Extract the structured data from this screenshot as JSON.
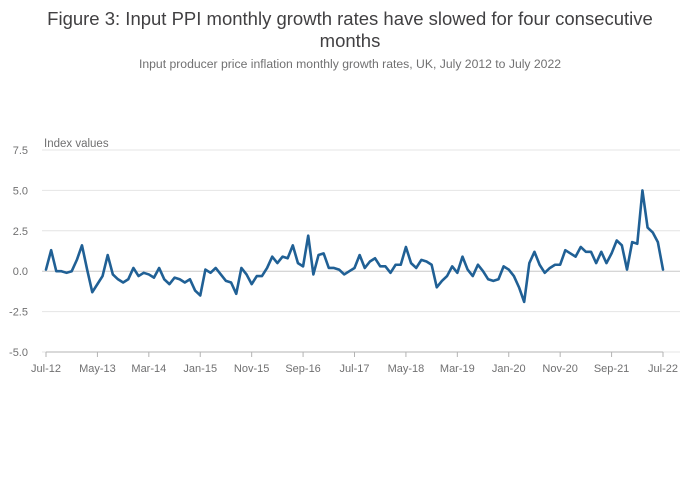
{
  "title": "Figure 3: Input PPI monthly growth rates have slowed for four consecutive months",
  "subtitle": "Input producer price inflation monthly growth rates, UK, July 2012 to July 2022",
  "chart_data": {
    "type": "line",
    "title": "Figure 3: Input PPI monthly growth rates have slowed for four consecutive months",
    "subtitle": "Input producer price inflation monthly growth rates, UK, July 2012 to July 2022",
    "xlabel": "",
    "ylabel": "Index values",
    "ylim": [
      -5.0,
      7.5
    ],
    "yticks": [
      "7.5",
      "5.0",
      "2.5",
      "0.0",
      "-2.5",
      "-5.0"
    ],
    "ytick_values": [
      7.5,
      5.0,
      2.5,
      0.0,
      -2.5,
      -5.0
    ],
    "xticks": [
      "Jul-12",
      "May-13",
      "Mar-14",
      "Jan-15",
      "Nov-15",
      "Sep-16",
      "Jul-17",
      "May-18",
      "Mar-19",
      "Jan-20",
      "Nov-20",
      "Sep-21",
      "Jul-22"
    ],
    "xtick_index": [
      0,
      10,
      20,
      30,
      40,
      50,
      60,
      70,
      80,
      90,
      100,
      110,
      120
    ],
    "grid": true,
    "line_color": "#206095",
    "series": [
      {
        "name": "Input PPI monthly growth rate",
        "start": "Jul-12",
        "values": [
          0.1,
          1.3,
          0.0,
          0.0,
          -0.1,
          0.0,
          0.7,
          1.6,
          0.1,
          -1.3,
          -0.8,
          -0.3,
          1.0,
          -0.2,
          -0.5,
          -0.7,
          -0.5,
          0.2,
          -0.3,
          -0.1,
          -0.2,
          -0.4,
          0.2,
          -0.5,
          -0.8,
          -0.4,
          -0.5,
          -0.7,
          -0.5,
          -1.2,
          -1.5,
          0.1,
          -0.1,
          0.2,
          -0.2,
          -0.6,
          -0.7,
          -1.4,
          0.2,
          -0.2,
          -0.8,
          -0.3,
          -0.3,
          0.2,
          0.9,
          0.5,
          0.9,
          0.8,
          1.6,
          0.5,
          0.3,
          2.2,
          -0.2,
          1.0,
          1.1,
          0.2,
          0.2,
          0.1,
          -0.2,
          0.0,
          0.2,
          1.0,
          0.2,
          0.6,
          0.8,
          0.3,
          0.3,
          -0.1,
          0.4,
          0.4,
          1.5,
          0.5,
          0.2,
          0.7,
          0.6,
          0.4,
          -1.0,
          -0.6,
          -0.3,
          0.3,
          -0.1,
          0.9,
          0.1,
          -0.3,
          0.4,
          0.0,
          -0.5,
          -0.6,
          -0.5,
          0.3,
          0.1,
          -0.3,
          -1.0,
          -1.9,
          0.5,
          1.2,
          0.4,
          -0.1,
          0.2,
          0.4,
          0.4,
          1.3,
          1.1,
          0.9,
          1.5,
          1.2,
          1.2,
          0.5,
          1.2,
          0.5,
          1.1,
          1.9,
          1.6,
          0.1,
          1.8,
          1.7,
          5.0,
          2.7,
          2.4,
          1.8,
          0.1
        ]
      }
    ]
  }
}
